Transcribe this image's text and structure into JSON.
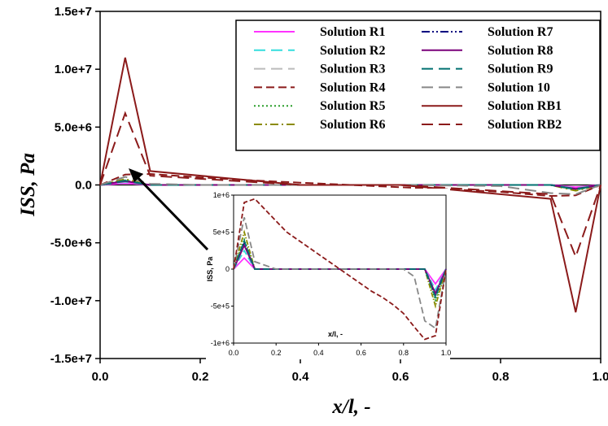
{
  "chart_data": [
    {
      "type": "line",
      "title": "",
      "xlabel": "x/l, -",
      "ylabel": "ISS, Pa",
      "xlim": [
        0,
        1
      ],
      "ylim": [
        -15000000,
        15000000
      ],
      "x_ticks": [
        {
          "value": 0.0,
          "label": "0.0"
        },
        {
          "value": 0.2,
          "label": "0.2"
        },
        {
          "value": 0.4,
          "label": "0.4"
        },
        {
          "value": 0.6,
          "label": "0.6"
        },
        {
          "value": 0.8,
          "label": "0.8"
        },
        {
          "value": 1.0,
          "label": "1.0"
        }
      ],
      "y_ticks": [
        {
          "value": 15000000,
          "label": "1.5e+7"
        },
        {
          "value": 10000000,
          "label": "1.0e+7"
        },
        {
          "value": 5000000,
          "label": "5.0e+6"
        },
        {
          "value": 0,
          "label": "0.0"
        },
        {
          "value": -5000000,
          "label": "-5.0e+6"
        },
        {
          "value": -10000000,
          "label": "-1.0e+7"
        },
        {
          "value": -15000000,
          "label": "-1.5e+7"
        }
      ],
      "legend_position": "top-right",
      "series": [
        {
          "name": "Solution R1",
          "color": "#ff33ff",
          "dash": "solid",
          "x": [
            0,
            0.05,
            0.1,
            0.4,
            0.6,
            0.9,
            0.95,
            1.0
          ],
          "y": [
            0,
            150000,
            0,
            0,
            0,
            0,
            -200000,
            0
          ]
        },
        {
          "name": "Solution R2",
          "color": "#33dddd",
          "dash": "longdash",
          "x": [
            0,
            0.05,
            0.1,
            0.4,
            0.6,
            0.9,
            0.95,
            1.0
          ],
          "y": [
            0,
            250000,
            0,
            0,
            0,
            0,
            -280000,
            0
          ]
        },
        {
          "name": "Solution R3",
          "color": "#bbbbbb",
          "dash": "longdash",
          "x": [
            0,
            0.05,
            0.1,
            0.4,
            0.6,
            0.9,
            0.95,
            1.0
          ],
          "y": [
            0,
            300000,
            0,
            0,
            0,
            0,
            -300000,
            0
          ]
        },
        {
          "name": "Solution R4",
          "color": "#8b1a1a",
          "dash": "dash",
          "x": [
            0,
            0.05,
            0.1,
            0.2,
            0.3,
            0.4,
            0.5,
            0.6,
            0.7,
            0.8,
            0.85,
            0.9,
            0.95,
            1.0
          ],
          "y": [
            0,
            900000,
            950000,
            650000,
            400000,
            200000,
            0,
            -200000,
            -380000,
            -600000,
            -780000,
            -950000,
            -900000,
            0
          ]
        },
        {
          "name": "Solution R5",
          "color": "#2a9d2a",
          "dash": "dot",
          "x": [
            0,
            0.05,
            0.1,
            0.4,
            0.6,
            0.9,
            0.95,
            1.0
          ],
          "y": [
            0,
            400000,
            0,
            0,
            0,
            0,
            -420000,
            0
          ]
        },
        {
          "name": "Solution R6",
          "color": "#8b8b00",
          "dash": "dashdot",
          "x": [
            0,
            0.05,
            0.1,
            0.4,
            0.6,
            0.9,
            0.95,
            1.0
          ],
          "y": [
            0,
            500000,
            0,
            0,
            0,
            0,
            -500000,
            0
          ]
        },
        {
          "name": "Solution R7",
          "color": "#000080",
          "dash": "dashdotdot",
          "x": [
            0,
            0.05,
            0.1,
            0.4,
            0.6,
            0.9,
            0.95,
            1.0
          ],
          "y": [
            0,
            350000,
            0,
            0,
            0,
            0,
            -350000,
            0
          ]
        },
        {
          "name": "Solution R8",
          "color": "#7a007a",
          "dash": "solid",
          "x": [
            0,
            0.05,
            0.1,
            0.4,
            0.6,
            0.9,
            0.95,
            1.0
          ],
          "y": [
            0,
            320000,
            0,
            0,
            0,
            0,
            -330000,
            0
          ]
        },
        {
          "name": "Solution R9",
          "color": "#007070",
          "dash": "longdash",
          "x": [
            0,
            0.05,
            0.1,
            0.4,
            0.6,
            0.9,
            0.95,
            1.0
          ],
          "y": [
            0,
            380000,
            0,
            0,
            0,
            0,
            -380000,
            0
          ]
        },
        {
          "name": "Solution 10",
          "color": "#888888",
          "dash": "longdash",
          "x": [
            0,
            0.05,
            0.1,
            0.2,
            0.4,
            0.6,
            0.8,
            0.9,
            0.95,
            1.0
          ],
          "y": [
            0,
            700000,
            100000,
            0,
            0,
            0,
            -100000,
            -700000,
            -800000,
            0
          ]
        },
        {
          "name": "Solution RB1",
          "color": "#8b1a1a",
          "dash": "solid",
          "x": [
            0,
            0.05,
            0.1,
            0.4,
            0.6,
            0.9,
            0.95,
            1.0
          ],
          "y": [
            0,
            11000000,
            1200000,
            0,
            0,
            -1200000,
            -11000000,
            0
          ]
        },
        {
          "name": "Solution RB2",
          "color": "#8b1a1a",
          "dash": "longdash",
          "x": [
            0,
            0.05,
            0.1,
            0.4,
            0.6,
            0.9,
            0.95,
            1.0
          ],
          "y": [
            0,
            6200000,
            800000,
            0,
            0,
            -800000,
            -6200000,
            0
          ]
        }
      ]
    },
    {
      "type": "line",
      "title": "",
      "xlabel": "x/l, -",
      "ylabel": "ISS, Pa",
      "xlim": [
        0,
        1
      ],
      "ylim": [
        -1000000,
        1000000
      ],
      "x_ticks": [
        {
          "value": 0.0,
          "label": "0.0"
        },
        {
          "value": 0.2,
          "label": "0.2"
        },
        {
          "value": 0.4,
          "label": "0.4"
        },
        {
          "value": 0.6,
          "label": "0.6"
        },
        {
          "value": 0.8,
          "label": "0.8"
        },
        {
          "value": 1.0,
          "label": "1.0"
        }
      ],
      "y_ticks": [
        {
          "value": 1000000,
          "label": "1e+6"
        },
        {
          "value": 500000,
          "label": "5e+5"
        },
        {
          "value": 0,
          "label": "0"
        },
        {
          "value": -500000,
          "label": "-5e+5"
        },
        {
          "value": -1000000,
          "label": "-1e+6"
        }
      ],
      "series": [
        {
          "color": "#ff33ff",
          "dash": "solid",
          "x": [
            0,
            0.05,
            0.1,
            0.9,
            0.95,
            1.0
          ],
          "y": [
            0,
            150000,
            0,
            0,
            -200000,
            0
          ]
        },
        {
          "color": "#33dddd",
          "dash": "longdash",
          "x": [
            0,
            0.05,
            0.1,
            0.9,
            0.95,
            1.0
          ],
          "y": [
            0,
            250000,
            0,
            0,
            -280000,
            0
          ]
        },
        {
          "color": "#2a9d2a",
          "dash": "dot",
          "x": [
            0,
            0.05,
            0.1,
            0.9,
            0.95,
            1.0
          ],
          "y": [
            0,
            400000,
            0,
            0,
            -420000,
            0
          ]
        },
        {
          "color": "#8b8b00",
          "dash": "dashdot",
          "x": [
            0,
            0.05,
            0.1,
            0.9,
            0.95,
            1.0
          ],
          "y": [
            0,
            500000,
            0,
            0,
            -500000,
            0
          ]
        },
        {
          "color": "#000080",
          "dash": "dashdotdot",
          "x": [
            0,
            0.05,
            0.1,
            0.9,
            0.95,
            1.0
          ],
          "y": [
            0,
            350000,
            0,
            0,
            -350000,
            0
          ]
        },
        {
          "color": "#7a007a",
          "dash": "solid",
          "x": [
            0,
            0.05,
            0.1,
            0.9,
            0.95,
            1.0
          ],
          "y": [
            0,
            320000,
            0,
            0,
            -330000,
            0
          ]
        },
        {
          "color": "#007070",
          "dash": "longdash",
          "x": [
            0,
            0.05,
            0.1,
            0.9,
            0.95,
            1.0
          ],
          "y": [
            0,
            380000,
            0,
            0,
            -380000,
            0
          ]
        },
        {
          "color": "#888888",
          "dash": "longdash",
          "x": [
            0,
            0.05,
            0.1,
            0.2,
            0.8,
            0.85,
            0.9,
            0.95,
            1.0
          ],
          "y": [
            0,
            700000,
            100000,
            0,
            0,
            -100000,
            -700000,
            -800000,
            0
          ]
        },
        {
          "color": "#8b1a1a",
          "dash": "dash",
          "x": [
            0,
            0.05,
            0.1,
            0.15,
            0.2,
            0.25,
            0.3,
            0.35,
            0.4,
            0.5,
            0.6,
            0.65,
            0.7,
            0.75,
            0.8,
            0.85,
            0.9,
            0.95,
            1.0
          ],
          "y": [
            0,
            900000,
            950000,
            800000,
            650000,
            500000,
            400000,
            300000,
            200000,
            0,
            -200000,
            -300000,
            -380000,
            -480000,
            -600000,
            -780000,
            -950000,
            -900000,
            0
          ]
        }
      ]
    }
  ]
}
